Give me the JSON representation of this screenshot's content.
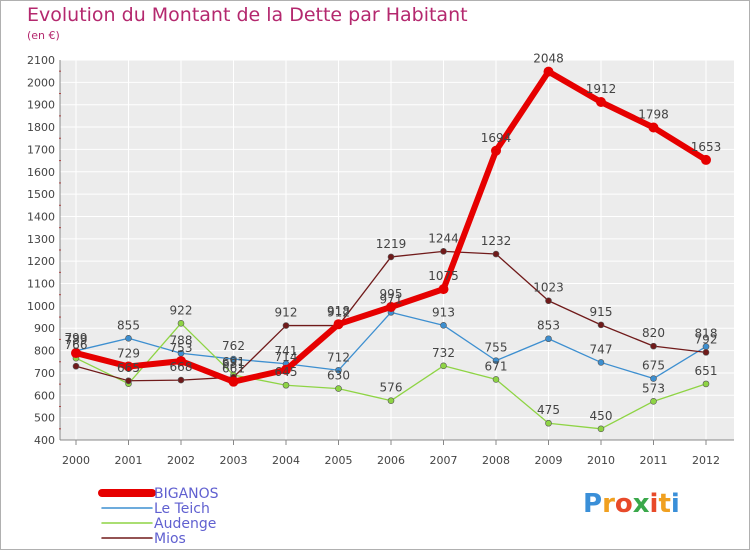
{
  "header": {
    "title": "Evolution du Montant de la Dette par Habitant",
    "subtitle": "(en €)"
  },
  "logo": {
    "letters": [
      "P",
      "r",
      "o",
      "x",
      "i",
      "t",
      "i"
    ],
    "colors": [
      "#3a8fd8",
      "#f0a020",
      "#e84a2a",
      "#3aa84a",
      "#e84a2a",
      "#f0a020",
      "#3a8fd8"
    ]
  },
  "chart_data": {
    "type": "line",
    "title": "Evolution du Montant de la Dette par Habitant",
    "subtitle": "(en €)",
    "x": [
      "2000",
      "2001",
      "2002",
      "2003",
      "2004",
      "2005",
      "2006",
      "2007",
      "2008",
      "2009",
      "2010",
      "2011",
      "2012"
    ],
    "ylim": [
      400,
      2100
    ],
    "yticks": [
      400,
      500,
      600,
      700,
      800,
      900,
      1000,
      1100,
      1200,
      1300,
      1400,
      1500,
      1600,
      1700,
      1800,
      1900,
      2000,
      2100
    ],
    "grid": true,
    "legend_position": "bottom-left",
    "series": [
      {
        "name": "BIGANOS",
        "color": "#e60000",
        "values": [
          789,
          729,
          753,
          661,
          714,
          918,
          995,
          1075,
          1694,
          2048,
          1912,
          1798,
          1653
        ],
        "labels": [
          "789",
          "729",
          "753",
          "661",
          "714",
          "918",
          "995",
          "1075",
          "1694",
          "2048",
          "1912",
          "1798",
          "1653"
        ]
      },
      {
        "name": "Le Teich",
        "color": "#3d8fd0",
        "values": [
          799,
          855,
          788,
          762,
          741,
          712,
          971,
          913,
          755,
          853,
          747,
          675,
          818
        ],
        "labels": [
          "799",
          "855",
          "788",
          "762",
          "741",
          "712",
          "971",
          "913",
          "755",
          "853",
          "747",
          "675",
          "818"
        ]
      },
      {
        "name": "Audenge",
        "color": "#8ed444",
        "values": [
          766,
          652,
          922,
          691,
          645,
          630,
          576,
          732,
          671,
          475,
          450,
          573,
          651
        ],
        "labels": [
          "766",
          "",
          "922",
          "691",
          "645",
          "630",
          "576",
          "732",
          "671",
          "475",
          "450",
          "573",
          "651"
        ]
      },
      {
        "name": "Mios",
        "color": "#701a1a",
        "values": [
          730,
          665,
          668,
          681,
          912,
          912,
          1219,
          1244,
          1232,
          1023,
          915,
          820,
          792
        ],
        "labels": [
          "",
          "665",
          "668",
          "681",
          "912",
          "912",
          "1219",
          "1244",
          "1232",
          "1023",
          "915",
          "820",
          "792"
        ]
      }
    ]
  }
}
